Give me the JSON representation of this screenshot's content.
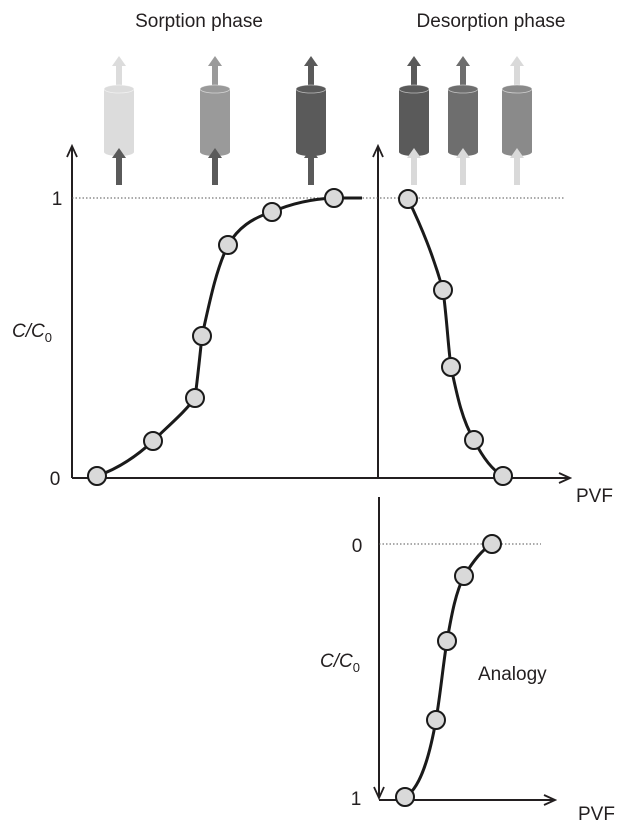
{
  "headers": {
    "sorption": "Sorption phase",
    "desorption": "Desorption phase"
  },
  "main_chart": {
    "y_ticks": [
      "1",
      "0"
    ],
    "y_label": {
      "main": "C/C",
      "sub": "0"
    },
    "x_label": "PVF"
  },
  "lower_chart": {
    "y_ticks": [
      "0",
      "1"
    ],
    "y_label": {
      "main": "C/C",
      "sub": "0"
    },
    "x_label": "PVF",
    "annotation": "Analogy"
  },
  "colors": {
    "axis": "#231f20",
    "curve": "#1a1a1a",
    "marker_fill": "#d9d9d9",
    "reference_line": "#555555",
    "column_light": "#dcdcdc",
    "column_mid": "#9a9a9a",
    "column_dark": "#5a5a5a",
    "column_mid_dark": "#6e6e6e",
    "column_desorption_light": "#8a8a8a",
    "arrow_dark": "#5a5a5a",
    "arrow_light": "#d9d9d9"
  },
  "icons": [
    "column-cylinder-icon",
    "flow-arrow-up-icon"
  ]
}
